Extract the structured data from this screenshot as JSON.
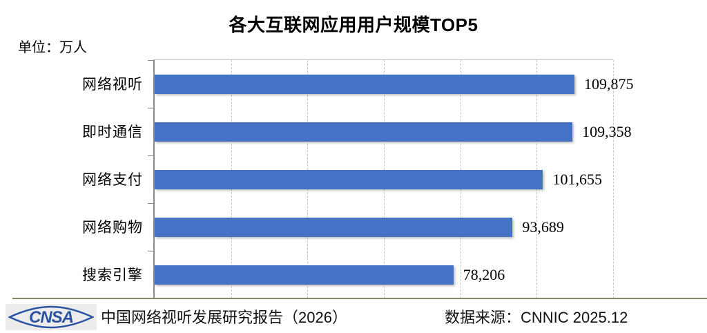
{
  "title": "各大互联网应用用户规模TOP5",
  "unit_label": "单位：万人",
  "chart_data": {
    "type": "bar",
    "orientation": "horizontal",
    "title": "各大互联网应用用户规模TOP5",
    "unit": "万人",
    "categories": [
      "网络视听",
      "即时通信",
      "网络支付",
      "网络购物",
      "搜索引擎"
    ],
    "values": [
      109875,
      109358,
      101655,
      93689,
      78206
    ],
    "data_labels": [
      "109,875",
      "109,358",
      "101,655",
      "93,689",
      "78,206"
    ],
    "xlim": [
      0,
      120000
    ],
    "gridline_interval": 20000,
    "grid": "vertical-dashed",
    "legend": "none",
    "bar_color": "#4472C4"
  },
  "footer": {
    "logo_text": "CNSA",
    "report_label": "中国网络视听发展研究报告（2026）",
    "source_label": "数据来源：CNNIC 2025.12"
  },
  "colors": {
    "bar": "#4472C4",
    "axis": "#8a8a8a",
    "gridline": "#c4c4c4",
    "divider": "#7b8d69",
    "logo_blue": "#2a52a2"
  }
}
